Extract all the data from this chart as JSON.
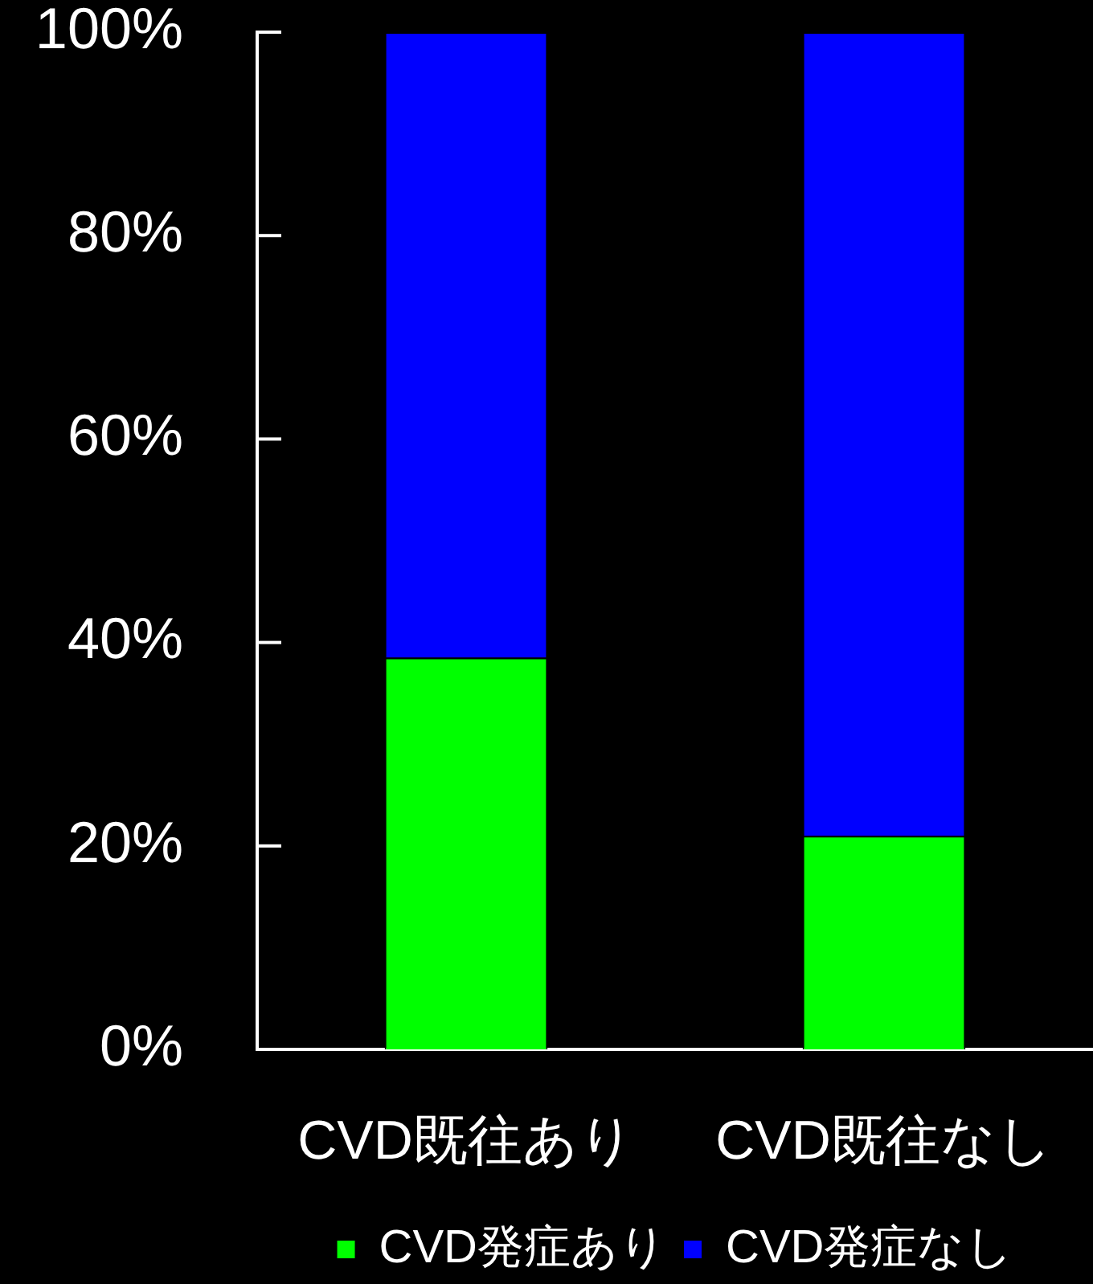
{
  "chart_data": {
    "type": "bar",
    "categories": [
      "CVD既往あり",
      "CVD既往なし"
    ],
    "series": [
      {
        "name": "CVD発症あり",
        "color": "#00ff00",
        "values": [
          38.5,
          21
        ]
      },
      {
        "name": "CVD発症なし",
        "color": "#0000ff",
        "values": [
          61.5,
          79
        ]
      }
    ],
    "stacked": true,
    "ylim": [
      0,
      100
    ],
    "yticks": [
      {
        "value": 0,
        "label": "0%"
      },
      {
        "value": 20,
        "label": "20%"
      },
      {
        "value": 40,
        "label": "40%"
      },
      {
        "value": 60,
        "label": "60%"
      },
      {
        "value": 80,
        "label": "80%"
      },
      {
        "value": 100,
        "label": "100%"
      }
    ],
    "legend": "bottom"
  }
}
